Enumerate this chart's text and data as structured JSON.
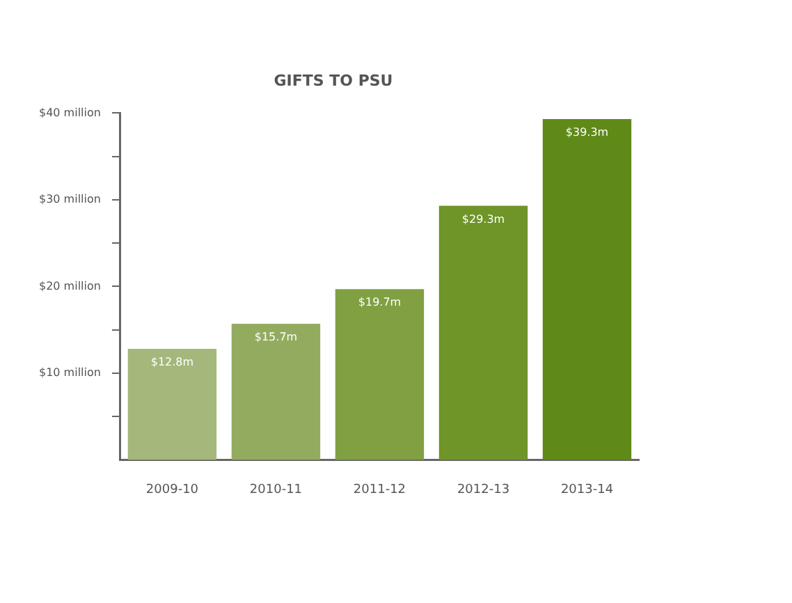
{
  "chart_data": {
    "type": "bar",
    "title": "GIFTS TO PSU",
    "categories": [
      "2009-10",
      "2010-11",
      "2011-12",
      "2012-13",
      "2013-14"
    ],
    "values": [
      12.8,
      15.7,
      19.7,
      29.3,
      39.3
    ],
    "value_labels": [
      "$12.8m",
      "$15.7m",
      "$19.7m",
      "$29.3m",
      "$39.3m"
    ],
    "colors": [
      "#a3b87a",
      "#93ab5f",
      "#80a042",
      "#6f9428",
      "#5f8a17"
    ],
    "ylim": [
      0,
      40
    ],
    "yticks": [
      {
        "value": 5,
        "label": null
      },
      {
        "value": 10,
        "label": "$10 million"
      },
      {
        "value": 15,
        "label": null
      },
      {
        "value": 20,
        "label": "$20 million"
      },
      {
        "value": 25,
        "label": null
      },
      {
        "value": 30,
        "label": "$30 million"
      },
      {
        "value": 35,
        "label": null
      },
      {
        "value": 40,
        "label": "$40 million"
      }
    ],
    "grid": false,
    "legend": false
  }
}
